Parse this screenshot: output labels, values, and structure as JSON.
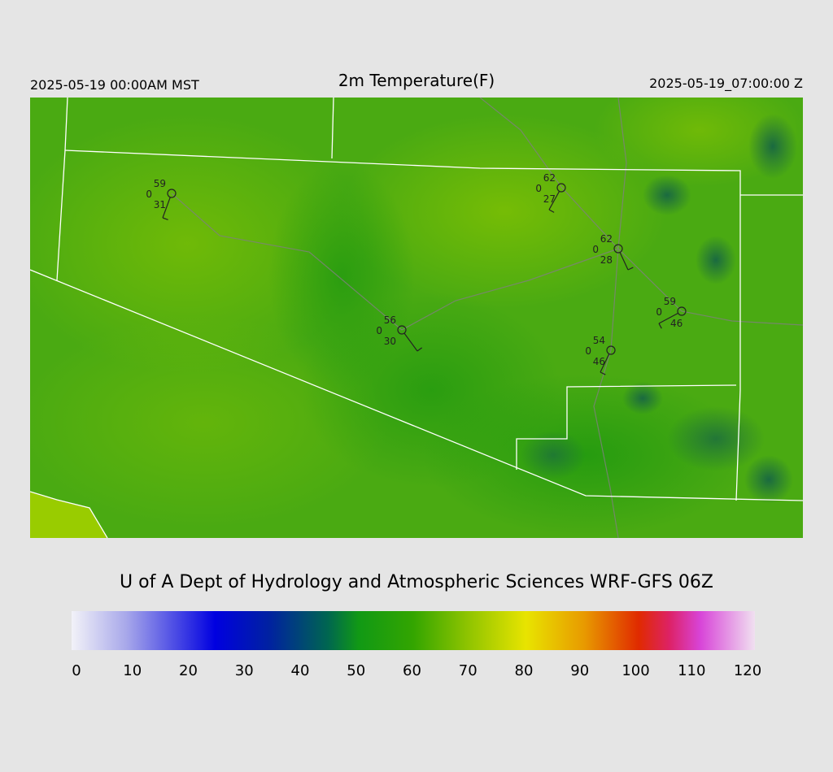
{
  "header": {
    "left": "2025-05-19 00:00AM MST",
    "title": "2m Temperature(F)",
    "right": "2025-05-19_07:00:00 Z"
  },
  "credit": "U of A Dept of Hydrology and Atmospheric Sciences WRF-GFS 06Z",
  "colorbar": {
    "lim": [
      0,
      120
    ],
    "ticks": [
      0,
      10,
      20,
      30,
      40,
      50,
      60,
      70,
      80,
      90,
      100,
      110,
      120
    ]
  },
  "stations": [
    {
      "temperature": "59",
      "pressure": "0",
      "dewpoint": "31"
    },
    {
      "temperature": "62",
      "pressure": "0",
      "dewpoint": "27"
    },
    {
      "temperature": "62",
      "pressure": "0",
      "dewpoint": "28"
    },
    {
      "temperature": "59",
      "pressure": "0",
      "dewpoint": "46"
    },
    {
      "temperature": "56",
      "pressure": "0",
      "dewpoint": "30"
    },
    {
      "temperature": "54",
      "pressure": "0",
      "dewpoint": "46"
    }
  ]
}
